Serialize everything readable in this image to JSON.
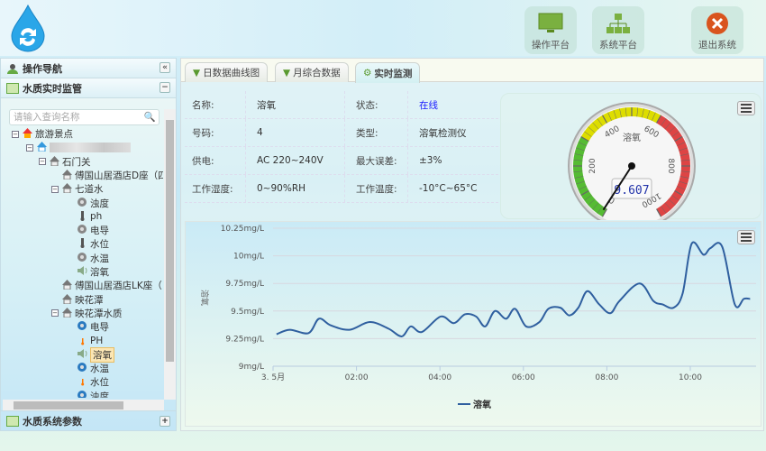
{
  "header": {
    "buttons": [
      {
        "label": "操作平台",
        "icon": "monitor-icon"
      },
      {
        "label": "系统平台",
        "icon": "sitemap-icon"
      },
      {
        "label": "退出系统",
        "icon": "close-icon"
      }
    ]
  },
  "sidebar": {
    "nav_title": "操作导航",
    "section_title": "水质实时监管",
    "search_placeholder": "请输入查询名称",
    "footer_title": "水质系统参数",
    "tree": [
      {
        "label": "旅游景点",
        "level": 0,
        "toggle": "⊟",
        "icon": "red-house"
      },
      {
        "label": "",
        "level": 1,
        "toggle": "⊟",
        "icon": "blue-house",
        "blurred": true
      },
      {
        "label": "石门关",
        "level": 2,
        "toggle": "⊟",
        "icon": "house"
      },
      {
        "label": "傅国山居酒店D座（四",
        "level": 3,
        "icon": "house"
      },
      {
        "label": "七道水",
        "level": 3,
        "toggle": "⊟",
        "icon": "house"
      },
      {
        "label": "浊度",
        "level": 4,
        "icon": "sensor"
      },
      {
        "label": "ph",
        "level": 4,
        "icon": "thermometer"
      },
      {
        "label": "电导",
        "level": 4,
        "icon": "sensor"
      },
      {
        "label": "水位",
        "level": 4,
        "icon": "thermometer"
      },
      {
        "label": "水温",
        "level": 4,
        "icon": "sensor"
      },
      {
        "label": "溶氧",
        "level": 4,
        "icon": "speaker"
      },
      {
        "label": "傅国山居酒店LK座（",
        "level": 3,
        "icon": "house"
      },
      {
        "label": "映花潭",
        "level": 3,
        "icon": "house"
      },
      {
        "label": "映花潭水质",
        "level": 3,
        "toggle": "⊟",
        "icon": "house"
      },
      {
        "label": "电导",
        "level": 4,
        "icon": "sensor-blue"
      },
      {
        "label": "PH",
        "level": 4,
        "icon": "thermo-orange"
      },
      {
        "label": "溶氧",
        "level": 4,
        "icon": "speaker",
        "selected": true
      },
      {
        "label": "水温",
        "level": 4,
        "icon": "sensor-blue"
      },
      {
        "label": "水位",
        "level": 4,
        "icon": "thermo-orange"
      },
      {
        "label": "浊度",
        "level": 4,
        "icon": "sensor-blue"
      }
    ]
  },
  "tabs": [
    {
      "label": "日数据曲线图",
      "icon": "filter-icon"
    },
    {
      "label": "月综合数据",
      "icon": "filter-icon"
    },
    {
      "label": "实时监测",
      "icon": "gear-icon",
      "active": true
    }
  ],
  "info": [
    [
      "名称:",
      "溶氧",
      "状态:",
      "在线"
    ],
    [
      "号码:",
      "4",
      "类型:",
      "溶氧检测仪"
    ],
    [
      "供电:",
      "AC 220~240V",
      "最大误差:",
      "±3%"
    ],
    [
      "工作湿度:",
      "0~90%RH",
      "工作温度:",
      "-10°C~65°C"
    ]
  ],
  "status_color": "#1a1aff",
  "gauge": {
    "title": "溶氧",
    "value": 9.607,
    "display": "9.607",
    "min": 0,
    "max": 1000,
    "ticks": [
      "0",
      "200",
      "400",
      "600",
      "800",
      "1000"
    ],
    "bands": [
      {
        "from": 0,
        "to": 300,
        "color": "#55bb33"
      },
      {
        "from": 300,
        "to": 600,
        "color": "#dddd00"
      },
      {
        "from": 600,
        "to": 1000,
        "color": "#dd4444"
      }
    ]
  },
  "chart_data": {
    "type": "line",
    "ylabel": "溶氧",
    "ylim": [
      9,
      10.25
    ],
    "yticks": [
      "10.25mg/L",
      "10mg/L",
      "9.75mg/L",
      "9.5mg/L",
      "9.25mg/L",
      "9mg/L"
    ],
    "xticks": [
      "3. 5月",
      "02:00",
      "04:00",
      "06:00",
      "08:00",
      "10:00"
    ],
    "grid": true,
    "legend": "bottom",
    "series": [
      {
        "name": "溶氧",
        "color": "#2f5f9f",
        "x": [
          "00:05",
          "00:24",
          "00:51",
          "01:06",
          "01:23",
          "01:50",
          "02:19",
          "02:46",
          "03:05",
          "03:18",
          "03:34",
          "04:01",
          "04:20",
          "04:36",
          "04:52",
          "05:05",
          "05:19",
          "05:35",
          "05:48",
          "06:04",
          "06:23",
          "06:36",
          "06:53",
          "07:06",
          "07:19",
          "07:32",
          "07:49",
          "08:05",
          "08:18",
          "08:47",
          "09:07",
          "09:20",
          "09:36",
          "09:49",
          "10:02",
          "10:19",
          "10:29",
          "10:46",
          "11:04",
          "11:17",
          "11:26"
        ],
        "values": [
          9.29,
          9.33,
          9.3,
          9.43,
          9.37,
          9.33,
          9.4,
          9.34,
          9.27,
          9.36,
          9.31,
          9.45,
          9.39,
          9.47,
          9.45,
          9.36,
          9.5,
          9.43,
          9.52,
          9.36,
          9.4,
          9.52,
          9.53,
          9.46,
          9.53,
          9.68,
          9.56,
          9.48,
          9.59,
          9.75,
          9.59,
          9.56,
          9.53,
          9.66,
          10.11,
          10.01,
          10.07,
          10.08,
          9.56,
          9.61,
          9.61
        ]
      }
    ]
  }
}
